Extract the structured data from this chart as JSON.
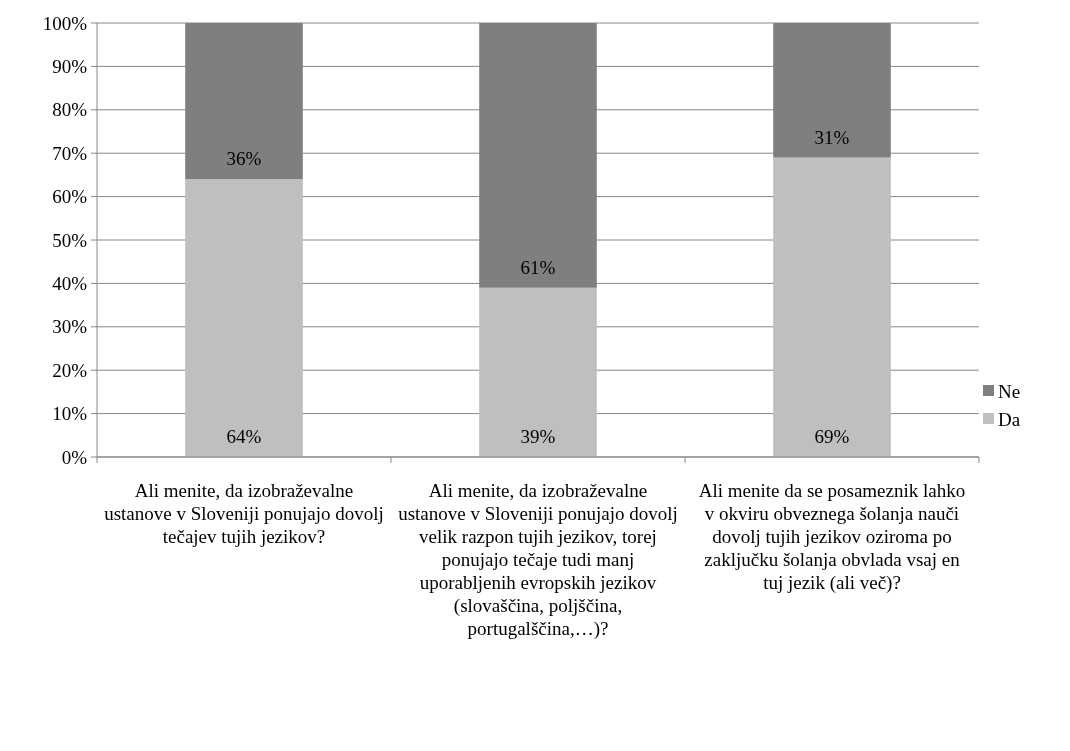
{
  "chart_data": {
    "type": "bar",
    "stacked": true,
    "categories": [
      "Ali menite, da izobraževalne ustanove v Sloveniji ponujajo dovolj tečajev tujih jezikov?",
      "Ali menite, da izobraževalne ustanove v Sloveniji ponujajo dovolj velik razpon tujih jezikov, torej ponujajo tečaje tudi manj uporabljenih evropskih jezikov (slovaščina, poljščina, portugalščina,…)?",
      "Ali menite da se posameznik lahko v okviru obveznega šolanja nauči dovolj tujih jezikov oziroma po zaključku šolanja obvlada vsaj en tuj jezik (ali več)?"
    ],
    "series": [
      {
        "name": "Da",
        "color": "#bfbfbf",
        "values": [
          64,
          39,
          69
        ],
        "value_labels": [
          "64%",
          "39%",
          "69%"
        ]
      },
      {
        "name": "Ne",
        "color": "#7f7f7f",
        "values": [
          36,
          61,
          31
        ],
        "value_labels": [
          "36%",
          "61%",
          "31%"
        ]
      }
    ],
    "ylim": [
      0,
      100
    ],
    "yticks": [
      {
        "value": 0,
        "label": "0%"
      },
      {
        "value": 10,
        "label": "10%"
      },
      {
        "value": 20,
        "label": "20%"
      },
      {
        "value": 30,
        "label": "30%"
      },
      {
        "value": 40,
        "label": "40%"
      },
      {
        "value": 50,
        "label": "50%"
      },
      {
        "value": 60,
        "label": "60%"
      },
      {
        "value": 70,
        "label": "70%"
      },
      {
        "value": 80,
        "label": "80%"
      },
      {
        "value": 90,
        "label": "90%"
      },
      {
        "value": 100,
        "label": "100%"
      }
    ],
    "grid": "y",
    "legend": "right"
  }
}
